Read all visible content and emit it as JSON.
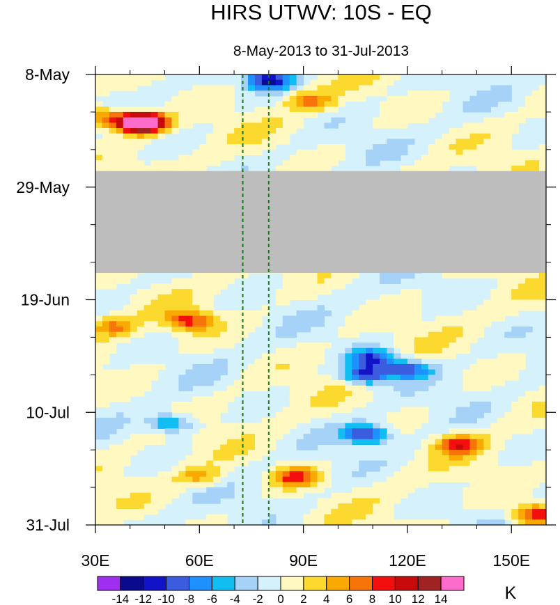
{
  "chart_data": {
    "type": "heatmap",
    "title": "HIRS UTWV: 10S - EQ",
    "subtitle": "8-May-2013 to 31-Jul-2013",
    "xlabel": "",
    "ylabel": "",
    "x_range": [
      30,
      160
    ],
    "x_ticks": [
      {
        "value": 30,
        "label": "30E"
      },
      {
        "value": 60,
        "label": "60E"
      },
      {
        "value": 90,
        "label": "90E"
      },
      {
        "value": 120,
        "label": "120E"
      },
      {
        "value": 150,
        "label": "150E"
      }
    ],
    "y_range_days": [
      0,
      84
    ],
    "y_ticks": [
      {
        "value": 0,
        "label": "8-May"
      },
      {
        "value": 21,
        "label": "29-May"
      },
      {
        "value": 42,
        "label": "19-Jun"
      },
      {
        "value": 63,
        "label": "10-Jul"
      },
      {
        "value": 84,
        "label": "31-Jul"
      }
    ],
    "reference_lines_lon": [
      72.5,
      80
    ],
    "missing_data": {
      "start_day": 18,
      "end_day": 37,
      "color": "#bdbdbd"
    },
    "colorbar": {
      "unit": "K",
      "levels": [
        -14,
        -12,
        -10,
        -8,
        -6,
        -4,
        -2,
        0,
        2,
        4,
        6,
        8,
        10,
        12,
        14
      ],
      "tick_labels": [
        "-14",
        "-12",
        "-10",
        "-8",
        "-6",
        "-4",
        "-2",
        "0",
        "2",
        "4",
        "6",
        "8",
        "10",
        "12",
        "14"
      ],
      "colors": [
        "#9f2ff0",
        "#0a0a8f",
        "#1212c8",
        "#3c5ce0",
        "#1e90ff",
        "#12bdf2",
        "#a6d2f7",
        "#d4f1fc",
        "#fff8c0",
        "#fcd92f",
        "#f9a902",
        "#f7740a",
        "#f40f0f",
        "#c70a0a",
        "#a02323",
        "#fb6ccb"
      ]
    },
    "features": [
      {
        "lon": 32,
        "day": 8,
        "value": 8
      },
      {
        "lon": 42,
        "day": 9,
        "value": 12
      },
      {
        "lon": 44,
        "day": 9,
        "value": 15
      },
      {
        "lon": 80,
        "day": 1,
        "value": -12
      },
      {
        "lon": 92,
        "day": 5,
        "value": 6
      },
      {
        "lon": 57,
        "day": 46,
        "value": 9
      },
      {
        "lon": 35,
        "day": 47,
        "value": 6
      },
      {
        "lon": 108,
        "day": 56,
        "value": -11
      },
      {
        "lon": 110,
        "day": 53,
        "value": -10
      },
      {
        "lon": 120,
        "day": 55,
        "value": -9
      },
      {
        "lon": 108,
        "day": 67,
        "value": -11
      },
      {
        "lon": 52,
        "day": 65,
        "value": -8
      },
      {
        "lon": 88,
        "day": 75,
        "value": 9
      },
      {
        "lon": 135,
        "day": 69,
        "value": 9
      },
      {
        "lon": 157,
        "day": 82,
        "value": 10
      },
      {
        "lon": 60,
        "day": 75,
        "value": 5
      }
    ]
  }
}
